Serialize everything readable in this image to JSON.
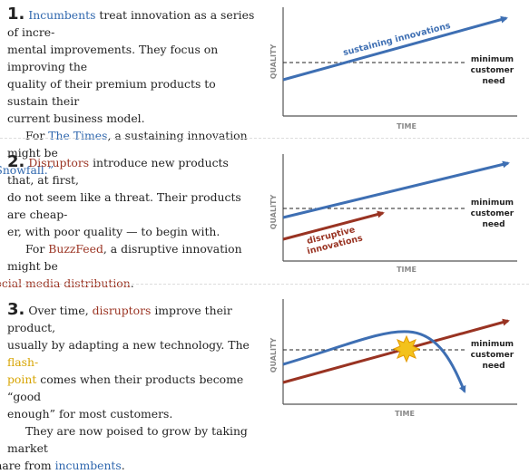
{
  "section1": {
    "number": "1.",
    "p1_link": "Incumbents",
    "p1_l1": " treat innovation as a series of incre-",
    "p1_l2": "mental improvements. They focus on improving the",
    "p1_l3": "quality of their premium products to sustain their",
    "p1_l4": "current business model.",
    "p2_pre": "For ",
    "p2_link": "The Times",
    "p2_post": ", a sustaining innovation might be",
    "p2_link2": "“Snowfall.”",
    "chart": {
      "ylabel": "QUALITY",
      "xlabel": "TIME",
      "need_label": [
        "minimum",
        "customer",
        "need"
      ],
      "line_label": "sustaining innovations"
    }
  },
  "section2": {
    "number": "2.",
    "p1_link": "Disruptors",
    "p1_l1": " introduce new products that, at first,",
    "p1_l2": "do not seem like a threat. Their products are cheap-",
    "p1_l3": "er, with poor quality — to begin with.",
    "p2_pre": "For ",
    "p2_link": "BuzzFeed",
    "p2_post": ", a disruptive innovation might be",
    "p2_link2": "social media distribution",
    "p2_end": ".",
    "chart": {
      "ylabel": "QUALITY",
      "xlabel": "TIME",
      "need_label": [
        "minimum",
        "customer",
        "need"
      ],
      "line_label": [
        "disruptive",
        "innovations"
      ]
    }
  },
  "section3": {
    "number": "3.",
    "p1_pre": " Over time, ",
    "p1_link": "disruptors",
    "p1_l1": " improve their product,",
    "p1_l2_pre": "usually by adapting a new technology. The ",
    "p1_link2": "flash-",
    "p1_link3": "point",
    "p1_l3": " comes when their products become “good",
    "p1_l4": "enough” for most customers.",
    "p2_l1": "They are now poised to grow by taking market",
    "p2_pre": "share from ",
    "p2_link": "incumbents",
    "p2_end": ".",
    "chart": {
      "ylabel": "QUALITY",
      "xlabel": "TIME",
      "need_label": [
        "minimum",
        "customer",
        "need"
      ]
    }
  },
  "colors": {
    "sustaining": "#3e6fb3",
    "disruptive": "#993322",
    "flashpoint": "#f3c21b"
  }
}
